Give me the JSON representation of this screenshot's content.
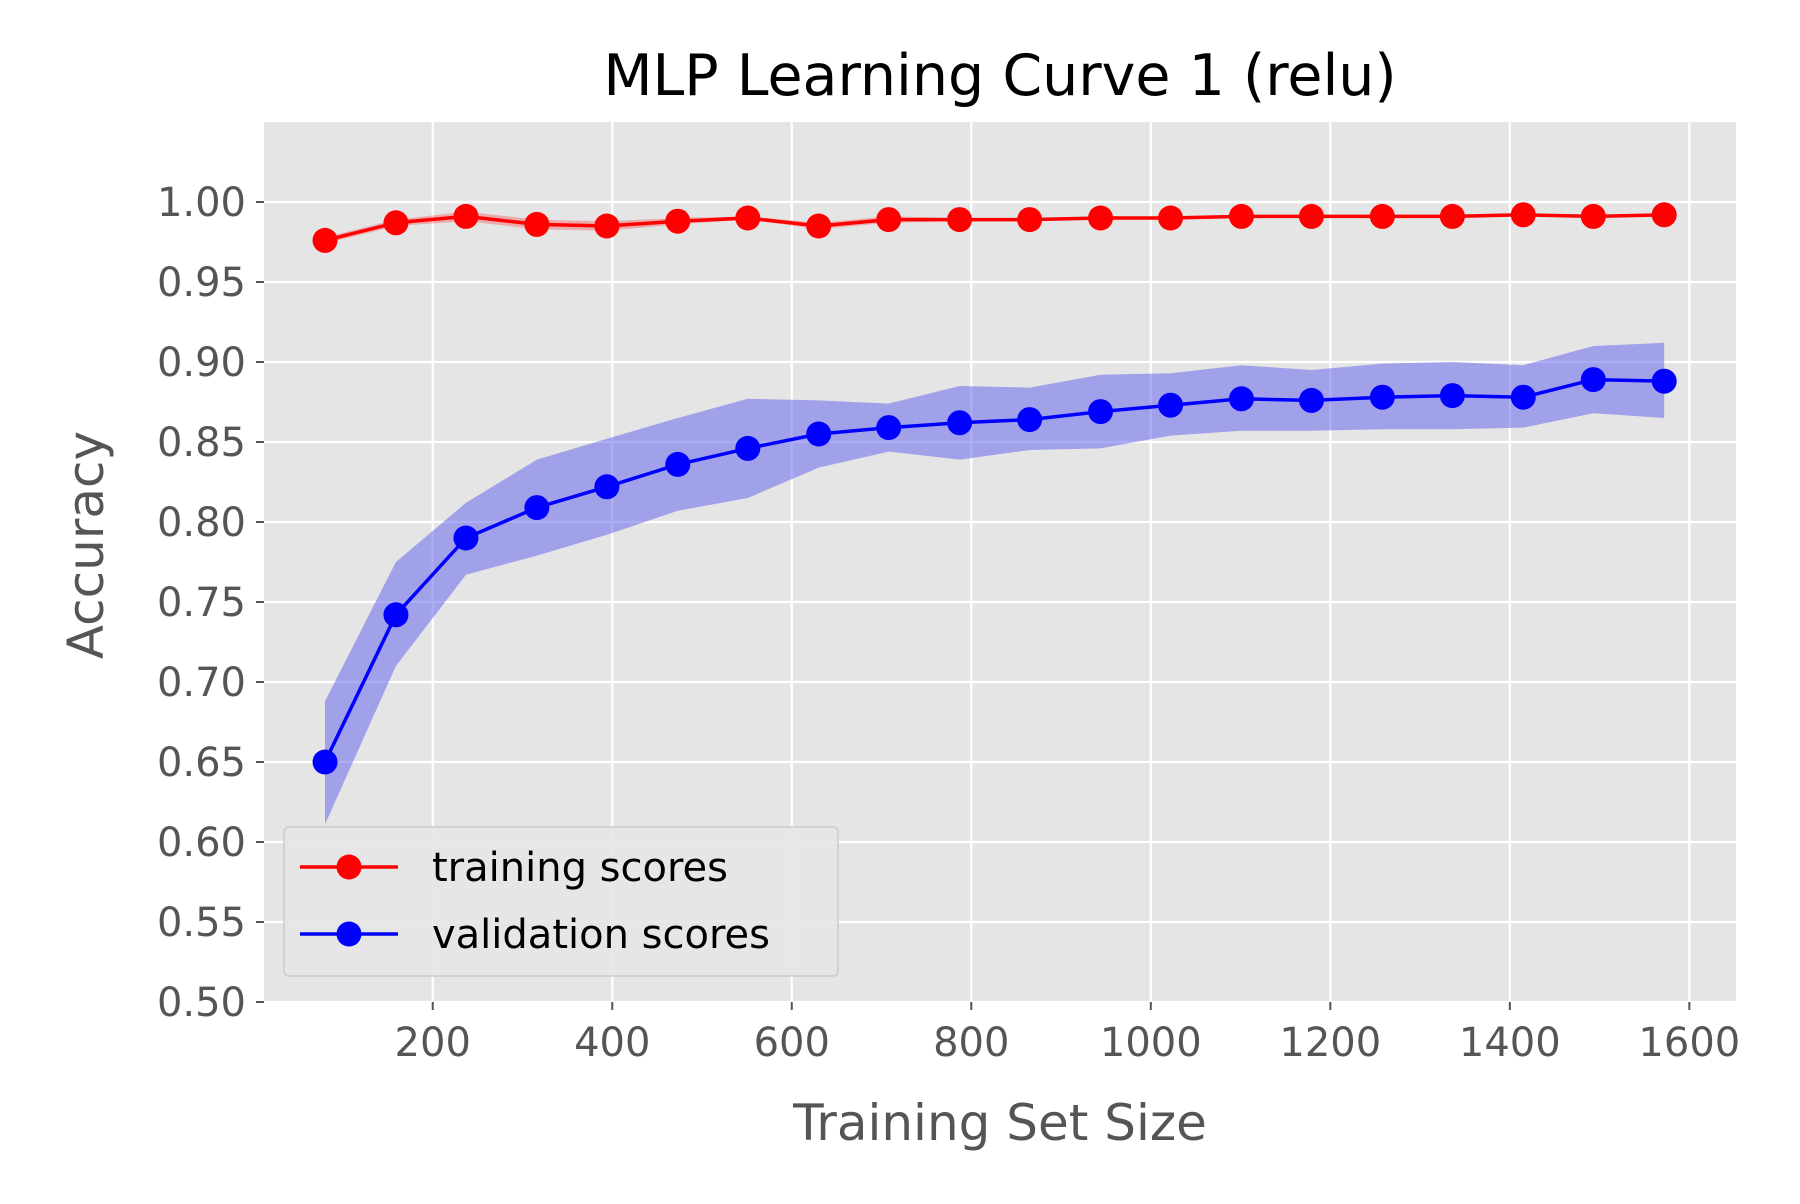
{
  "chart_data": {
    "type": "line",
    "title": "MLP Learning Curve 1 (relu)",
    "xlabel": "Training Set Size",
    "ylabel": "Accuracy",
    "xlim": [
      12,
      1652
    ],
    "ylim": [
      0.5,
      1.05
    ],
    "x_ticks": [
      200,
      400,
      600,
      800,
      1000,
      1200,
      1400,
      1600
    ],
    "y_ticks": [
      0.5,
      0.55,
      0.6,
      0.65,
      0.7,
      0.75,
      0.8,
      0.85,
      0.9,
      0.95,
      1.0
    ],
    "x_tick_labels": [
      "200",
      "400",
      "600",
      "800",
      "1000",
      "1200",
      "1400",
      "1600"
    ],
    "y_tick_labels": [
      "0.50",
      "0.55",
      "0.60",
      "0.65",
      "0.70",
      "0.75",
      "0.80",
      "0.85",
      "0.90",
      "0.95",
      "1.00"
    ],
    "grid": true,
    "legend_position": "lower-left",
    "x": [
      80,
      159,
      237,
      316,
      394,
      473,
      551,
      630,
      708,
      787,
      865,
      944,
      1022,
      1101,
      1179,
      1258,
      1336,
      1415,
      1493,
      1572
    ],
    "series": [
      {
        "name": "training scores",
        "color": "#ff0000",
        "band_color": "#ff0000",
        "marker": "circle",
        "values": [
          0.976,
          0.987,
          0.991,
          0.986,
          0.985,
          0.988,
          0.99,
          0.985,
          0.989,
          0.989,
          0.989,
          0.99,
          0.99,
          0.991,
          0.991,
          0.991,
          0.991,
          0.992,
          0.991,
          0.992
        ],
        "band_upper": [
          0.978,
          0.989,
          0.994,
          0.989,
          0.988,
          0.99,
          0.991,
          0.987,
          0.991,
          0.99,
          0.99,
          0.991,
          0.991,
          0.991,
          0.992,
          0.992,
          0.992,
          0.993,
          0.992,
          0.992
        ],
        "band_lower": [
          0.974,
          0.985,
          0.988,
          0.983,
          0.982,
          0.986,
          0.989,
          0.983,
          0.987,
          0.988,
          0.988,
          0.989,
          0.989,
          0.99,
          0.99,
          0.99,
          0.99,
          0.991,
          0.99,
          0.991
        ]
      },
      {
        "name": "validation scores",
        "color": "#0000ff",
        "band_color": "#6a6aee",
        "marker": "circle",
        "values": [
          0.65,
          0.742,
          0.79,
          0.809,
          0.822,
          0.836,
          0.846,
          0.855,
          0.859,
          0.862,
          0.864,
          0.869,
          0.873,
          0.877,
          0.876,
          0.878,
          0.879,
          0.878,
          0.889,
          0.888
        ],
        "band_upper": [
          0.688,
          0.775,
          0.812,
          0.839,
          0.852,
          0.865,
          0.877,
          0.876,
          0.874,
          0.885,
          0.884,
          0.892,
          0.893,
          0.898,
          0.895,
          0.899,
          0.9,
          0.898,
          0.91,
          0.912
        ],
        "band_lower": [
          0.611,
          0.71,
          0.767,
          0.779,
          0.792,
          0.807,
          0.815,
          0.834,
          0.844,
          0.839,
          0.845,
          0.846,
          0.854,
          0.857,
          0.857,
          0.858,
          0.858,
          0.859,
          0.868,
          0.865
        ]
      }
    ]
  }
}
